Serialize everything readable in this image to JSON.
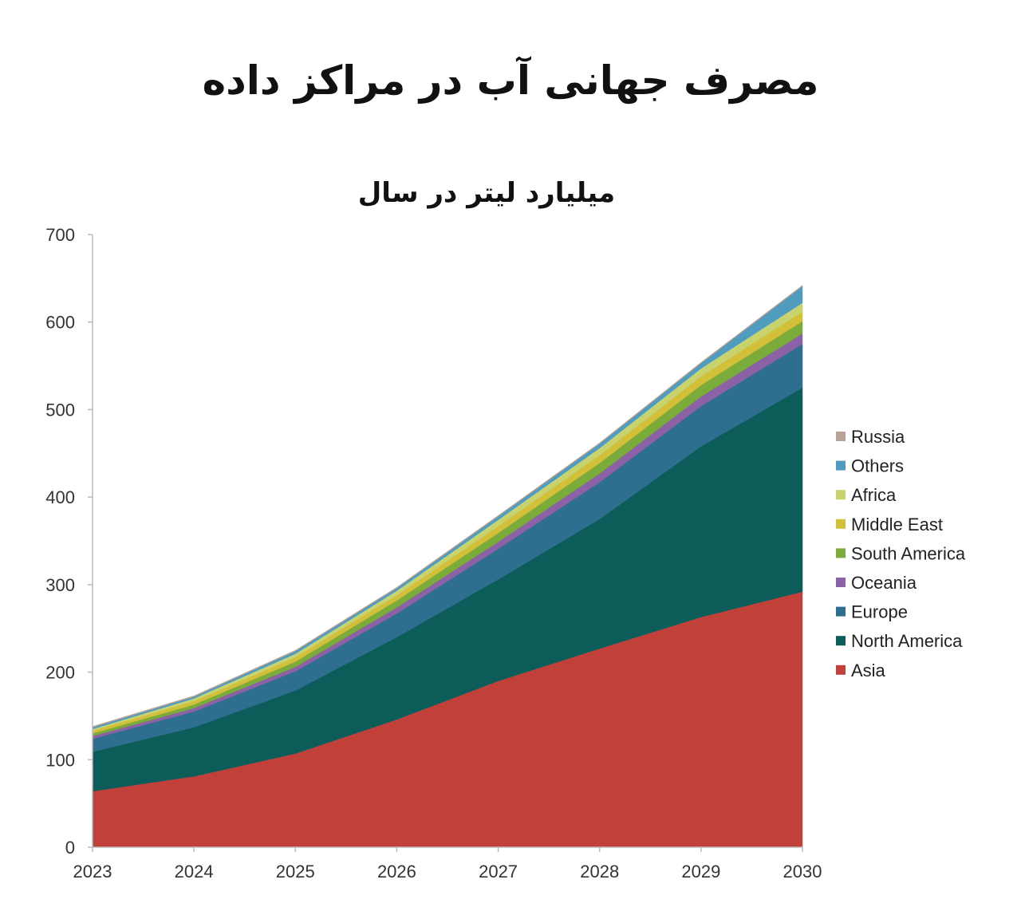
{
  "header": {
    "title": "مصرف جهانی آب در مراکز داده",
    "subtitle": "میلیارد لیتر در سال"
  },
  "chart_data": {
    "type": "area",
    "stacked": true,
    "title": "مصرف جهانی آب در مراکز داده",
    "subtitle": "میلیارد لیتر در سال",
    "xlabel": "",
    "ylabel": "",
    "x": [
      2023,
      2024,
      2025,
      2026,
      2027,
      2028,
      2029,
      2030
    ],
    "x_ticks": [
      "2023",
      "2024",
      "2025",
      "2026",
      "2027",
      "2028",
      "2029",
      "2030"
    ],
    "ylim": [
      0,
      700
    ],
    "y_ticks": [
      "0",
      "100",
      "200",
      "300",
      "400",
      "500",
      "600",
      "700"
    ],
    "grid": false,
    "legend_position": "right",
    "series": [
      {
        "name": "Asia",
        "color": "#c1403a",
        "values": [
          64,
          81,
          107,
          146,
          190,
          227,
          263,
          292
        ]
      },
      {
        "name": "North America",
        "color": "#0c5c5a",
        "values": [
          45,
          56,
          72,
          94,
          116,
          148,
          195,
          233
        ]
      },
      {
        "name": "Europe",
        "color": "#2e6f90",
        "values": [
          15,
          18,
          22,
          27,
          35,
          42,
          46,
          50
        ]
      },
      {
        "name": "Oceania",
        "color": "#8a62a5",
        "values": [
          3,
          4,
          5,
          7,
          8,
          10,
          11,
          12
        ]
      },
      {
        "name": "South America",
        "color": "#7bab3a",
        "values": [
          3,
          4,
          6,
          8,
          10,
          12,
          13,
          14
        ]
      },
      {
        "name": "Middle East",
        "color": "#d3c03a",
        "values": [
          3,
          4,
          5,
          6,
          8,
          9,
          10,
          11
        ]
      },
      {
        "name": "Africa",
        "color": "#c8d36e",
        "values": [
          2,
          3,
          4,
          5,
          7,
          8,
          9,
          10
        ]
      },
      {
        "name": "Others",
        "color": "#4f9cbf",
        "values": [
          2,
          2,
          3,
          3,
          4,
          5,
          6,
          19
        ]
      },
      {
        "name": "Russia",
        "color": "#b9a398",
        "values": [
          1,
          1,
          1,
          1,
          1,
          1,
          1,
          1
        ]
      }
    ],
    "legend": [
      "Russia",
      "Others",
      "Africa",
      "Middle East",
      "South America",
      "Oceania",
      "Europe",
      "North America",
      "Asia"
    ]
  }
}
